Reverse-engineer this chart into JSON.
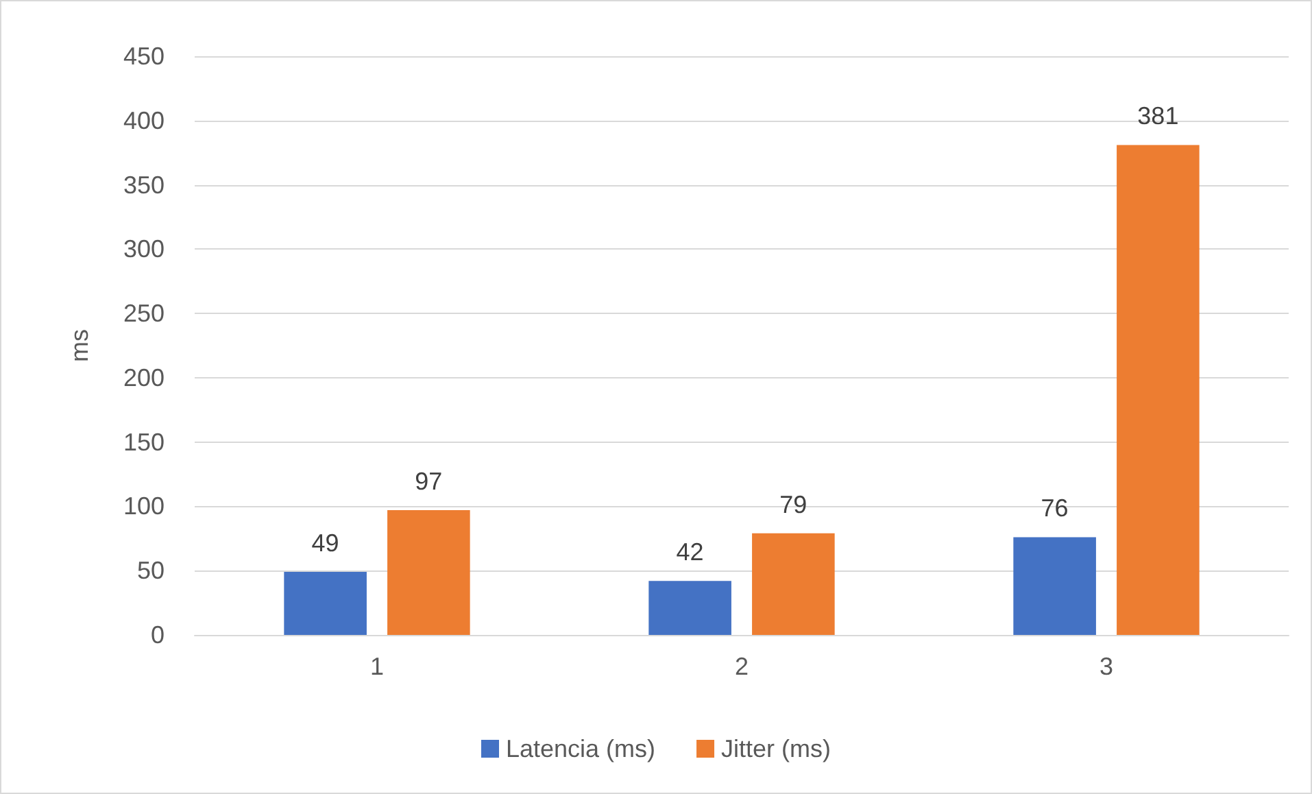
{
  "chart_data": {
    "type": "bar",
    "ylabel": "ms",
    "categories": [
      "1",
      "2",
      "3"
    ],
    "series": [
      {
        "name": "Latencia (ms)",
        "color": "#4472c4",
        "values": [
          49,
          42,
          76
        ]
      },
      {
        "name": "Jitter (ms)",
        "color": "#ed7d31",
        "values": [
          97,
          79,
          381
        ]
      }
    ],
    "ylim": [
      0,
      450
    ],
    "yticks": [
      0,
      50,
      100,
      150,
      200,
      250,
      300,
      350,
      400,
      450
    ],
    "grid": "y",
    "legend": "bottom",
    "data_labels": true
  }
}
